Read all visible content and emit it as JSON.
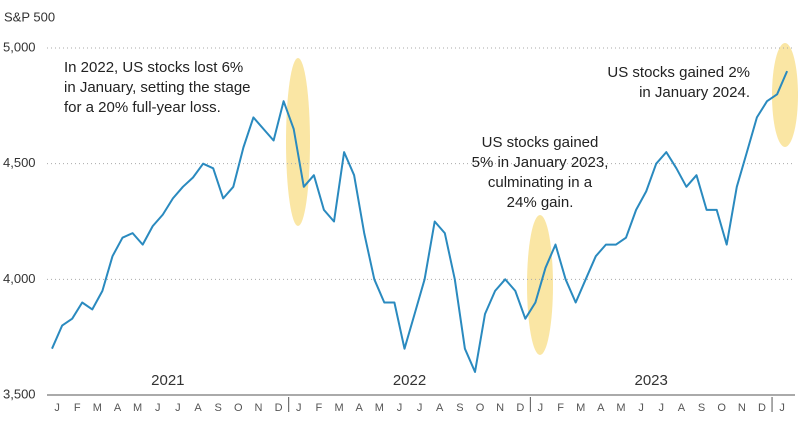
{
  "chart_data": {
    "type": "line",
    "y_label": "S&P 500",
    "categories": [
      "J",
      null,
      "F",
      null,
      "M",
      null,
      "A",
      null,
      "M",
      null,
      "J",
      null,
      "J",
      null,
      "A",
      null,
      "S",
      null,
      "O",
      null,
      "N",
      null,
      "D",
      null,
      "J",
      null,
      "F",
      null,
      "M",
      null,
      "A",
      null,
      "M",
      null,
      "J",
      null,
      "J",
      null,
      "A",
      null,
      "S",
      null,
      "O",
      null,
      "N",
      null,
      "D",
      null,
      "J",
      null,
      "F",
      null,
      "M",
      null,
      "A",
      null,
      "M",
      null,
      "J",
      null,
      "J",
      null,
      "A",
      null,
      "S",
      null,
      "O",
      null,
      "N",
      null,
      "D",
      null,
      "J",
      null
    ],
    "year_labels": [
      "2021",
      "2022",
      "2023"
    ],
    "values": [
      3700,
      3800,
      3830,
      3900,
      3870,
      3950,
      4100,
      4180,
      4200,
      4150,
      4230,
      4280,
      4350,
      4400,
      4440,
      4500,
      4480,
      4350,
      4400,
      4570,
      4700,
      4650,
      4600,
      4770,
      4650,
      4400,
      4450,
      4300,
      4250,
      4550,
      4450,
      4200,
      4000,
      3900,
      3900,
      3700,
      3850,
      4000,
      4250,
      4200,
      4000,
      3700,
      3600,
      3850,
      3950,
      4000,
      3950,
      3830,
      3900,
      4050,
      4150,
      4000,
      3900,
      4000,
      4100,
      4150,
      4150,
      4180,
      4300,
      4380,
      4500,
      4550,
      4480,
      4400,
      4450,
      4300,
      4300,
      4150,
      4400,
      4550,
      4700,
      4770,
      4800,
      4900
    ],
    "color": "#2a8abf",
    "ylim": [
      3500,
      5000
    ],
    "yticks": [
      {
        "value": 3500,
        "label": "3,500"
      },
      {
        "value": 4000,
        "label": "4,000"
      },
      {
        "value": 4500,
        "label": "4,500"
      },
      {
        "value": 5000,
        "label": "5,000"
      }
    ],
    "grid": true,
    "annotations": [
      [
        "In 2022, US stocks lost 6%",
        "in January, setting the stage",
        "for a 20% full-year loss."
      ],
      [
        "US stocks gained",
        "5% in January 2023,",
        "culminating in a",
        "24% gain."
      ],
      [
        "US stocks gained 2%",
        "in January 2024."
      ]
    ]
  }
}
